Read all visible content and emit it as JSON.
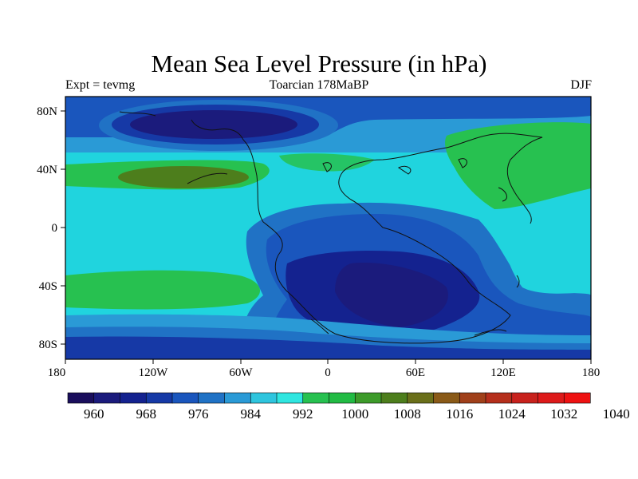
{
  "header": {
    "title": "Mean Sea Level Pressure (in hPa)",
    "left_label": "Expt = tevmg",
    "center_label": "Toarcian 178MaBP",
    "right_label": "DJF"
  },
  "map": {
    "lon_ticks": [
      "180",
      "120W",
      "60W",
      "0",
      "60E",
      "120E",
      "180"
    ],
    "lat_ticks": [
      "80N",
      "40N",
      "0",
      "40S",
      "80S"
    ],
    "lon_range": [
      -180,
      180
    ],
    "lat_range": [
      -90,
      90
    ]
  },
  "colorbar": {
    "colors": [
      "#1a0e5c",
      "#1b1b7c",
      "#14228f",
      "#1639a6",
      "#1a56bd",
      "#2072c5",
      "#2a9ad6",
      "#2ec5de",
      "#2fe6e0",
      "#27c150",
      "#22bb44",
      "#3d9b2a",
      "#4d7e1c",
      "#6a6f1a",
      "#8a5a18",
      "#a0401a",
      "#b52f1c",
      "#c8221d",
      "#dd1a1a",
      "#ee1212"
    ],
    "labels": [
      "960",
      "968",
      "976",
      "984",
      "992",
      "1000",
      "1008",
      "1016",
      "1024",
      "1032",
      "1040"
    ]
  },
  "colors": {
    "ocean_background": "#20d4de",
    "low_dark": "#1b1b7c",
    "low_mid": "#1639a6",
    "low_light": "#2072c5",
    "mid_blue": "#2a9ad6",
    "green_high": "#27c150",
    "olive_high": "#4d7e1c"
  }
}
